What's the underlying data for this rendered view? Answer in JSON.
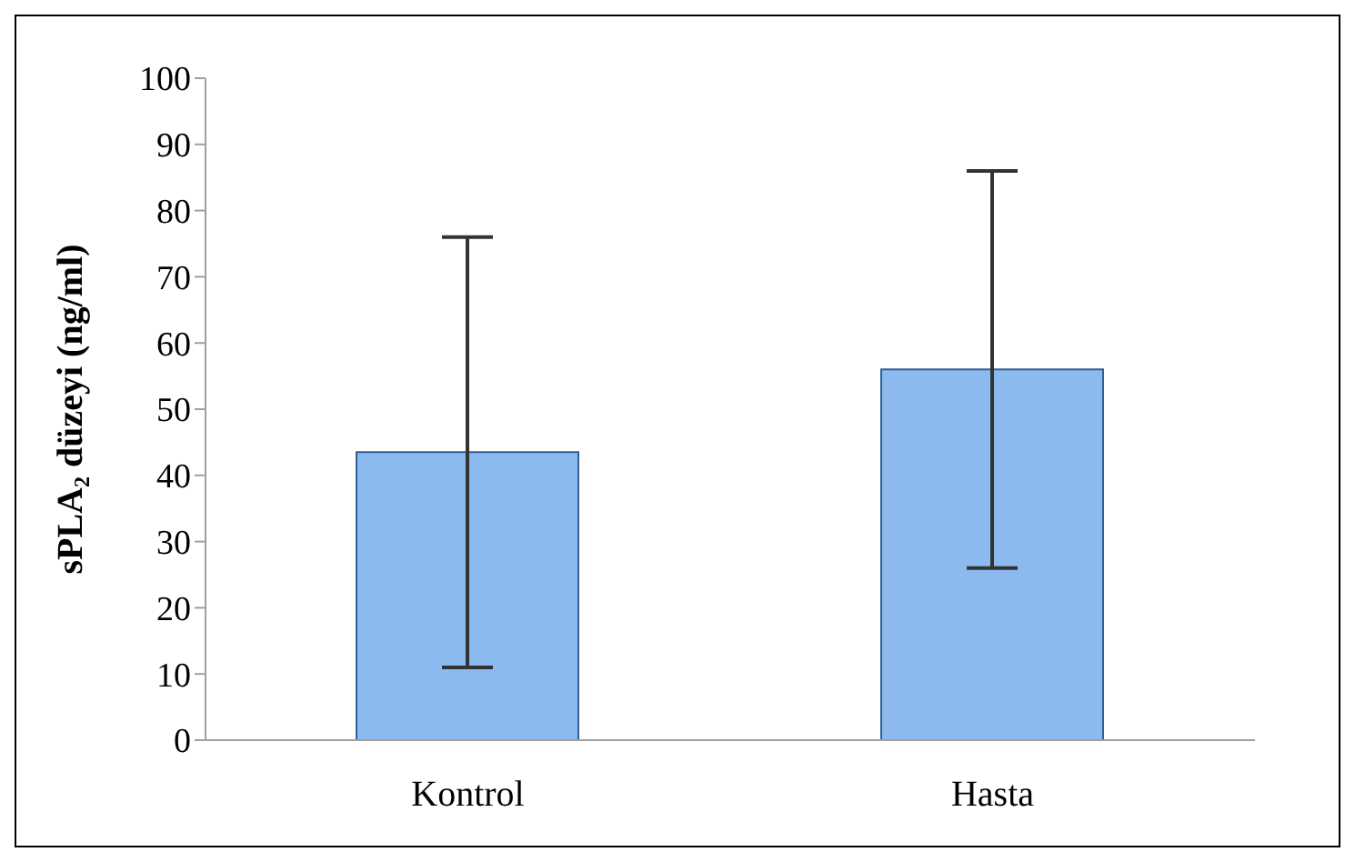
{
  "chart_data": {
    "type": "bar",
    "ylabel": "sPLA₂ düzeyi (ng/ml)",
    "categories": [
      "Kontrol",
      "Hasta"
    ],
    "values": [
      43.5,
      56
    ],
    "errors": [
      32.5,
      30
    ],
    "color": "#8cb9ee",
    "ylim": [
      0,
      100
    ],
    "yticks": [
      0,
      10,
      20,
      30,
      40,
      50,
      60,
      70,
      80,
      90,
      100
    ],
    "grid": false
  }
}
